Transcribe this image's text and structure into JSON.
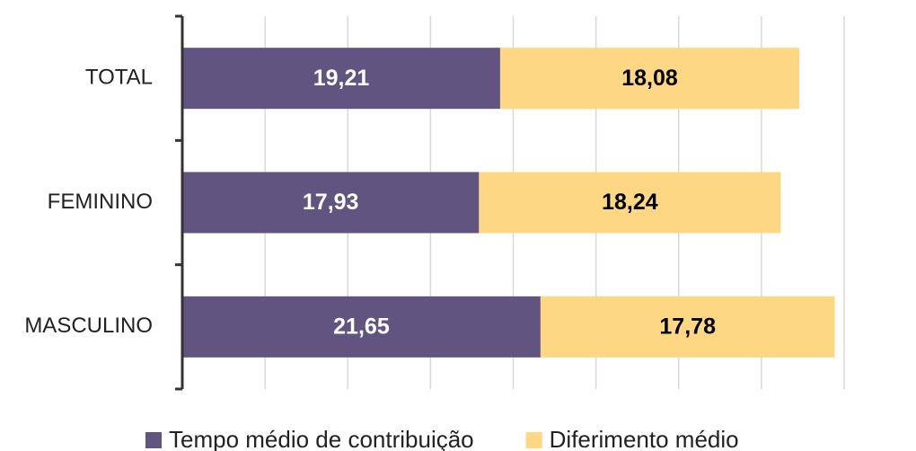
{
  "chart_data": {
    "type": "bar",
    "orientation": "horizontal",
    "stacked": true,
    "categories": [
      "TOTAL",
      "FEMININO",
      "MASCULINO"
    ],
    "series": [
      {
        "name": "Tempo médio de contribuição",
        "color": "#615480",
        "values": [
          19.21,
          17.93,
          21.65
        ],
        "value_labels": [
          "19,21",
          "17,93",
          "21,65"
        ]
      },
      {
        "name": "Diferimento médio",
        "color": "#fdd783",
        "values": [
          18.08,
          18.24,
          17.78
        ],
        "value_labels": [
          "18,08",
          "18,24",
          "17,78"
        ]
      }
    ],
    "xlim": [
      0,
      40
    ],
    "xticks": [
      0,
      5,
      10,
      15,
      20,
      25,
      30,
      35,
      40
    ],
    "grid": true,
    "legend": "bottom"
  }
}
